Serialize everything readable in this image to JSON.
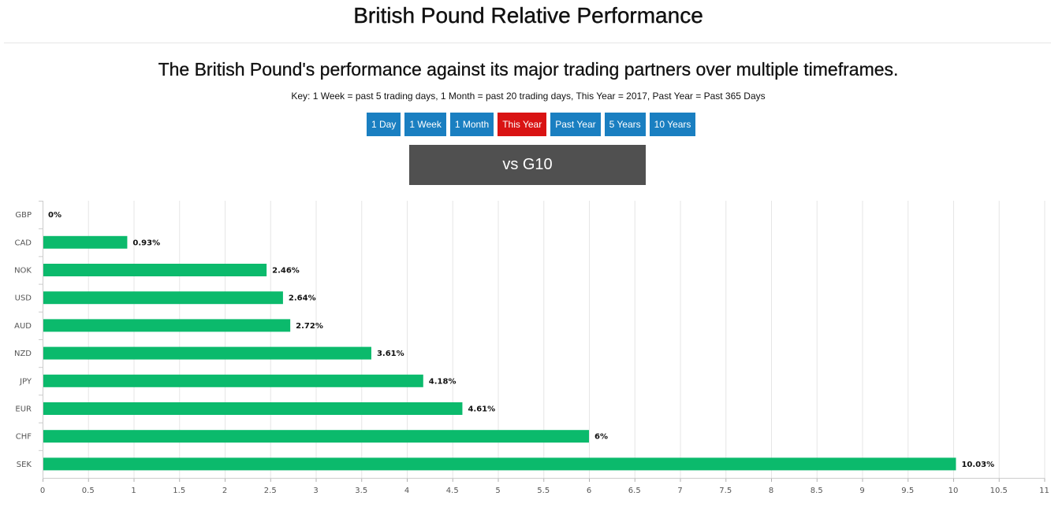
{
  "header": {
    "title": "British Pound Relative Performance"
  },
  "intro": {
    "subtitle": "The British Pound's performance against its major trading partners over multiple timeframes.",
    "key": "Key: 1 Week = past 5 trading days, 1 Month = past 20 trading days, This Year = 2017, Past Year = Past 365 Days"
  },
  "timeframes": {
    "items": [
      {
        "label": "1 Day",
        "active": false
      },
      {
        "label": "1 Week",
        "active": false
      },
      {
        "label": "1 Month",
        "active": false
      },
      {
        "label": "This Year",
        "active": true
      },
      {
        "label": "Past Year",
        "active": false
      },
      {
        "label": "5 Years",
        "active": false
      },
      {
        "label": "10 Years",
        "active": false
      }
    ]
  },
  "group_selector": {
    "label": "vs G10"
  },
  "colors": {
    "tab": "#1a7fc1",
    "tab_active": "#d91313",
    "bar": "#0bba6c",
    "grid": "#e6e6e6"
  },
  "chart_data": {
    "type": "bar",
    "orientation": "horizontal",
    "categories": [
      "GBP",
      "CAD",
      "NOK",
      "USD",
      "AUD",
      "NZD",
      "JPY",
      "EUR",
      "CHF",
      "SEK"
    ],
    "values": [
      0,
      0.93,
      2.46,
      2.64,
      2.72,
      3.61,
      4.18,
      4.61,
      6,
      10.03
    ],
    "data_labels": [
      "0%",
      "0.93%",
      "2.46%",
      "2.64%",
      "2.72%",
      "3.61%",
      "4.18%",
      "4.61%",
      "6%",
      "10.03%"
    ],
    "xlim": [
      0,
      11
    ],
    "xticks": [
      "0",
      "0.5",
      "1",
      "1.5",
      "2",
      "2.5",
      "3",
      "3.5",
      "4",
      "4.5",
      "5",
      "5.5",
      "6",
      "6.5",
      "7",
      "7.5",
      "8",
      "8.5",
      "9",
      "9.5",
      "10",
      "10.5",
      "11"
    ],
    "grid": true,
    "legend": false
  }
}
